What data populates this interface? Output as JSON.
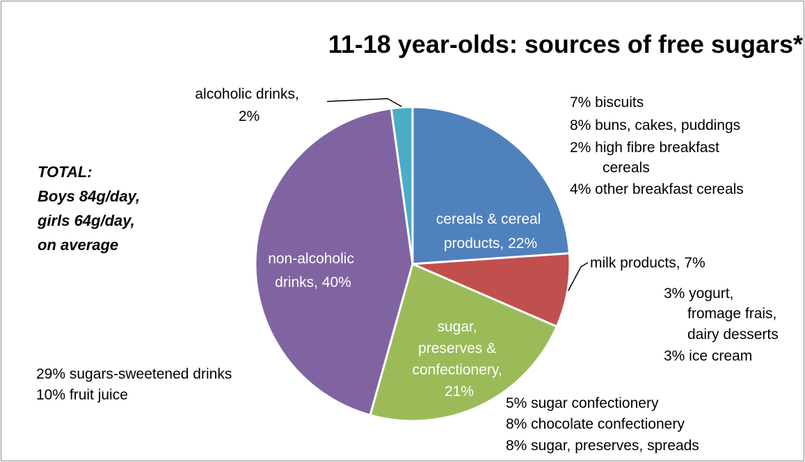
{
  "chart_data": {
    "type": "pie",
    "title": "11-18 year-olds: sources of free sugars*",
    "slices": [
      {
        "label": "cereals & cereal products",
        "value": 22,
        "color": "#4f81bd",
        "label_lines": [
          "cereals & cereal",
          "products, 22%"
        ],
        "breakdown": [
          "7% biscuits",
          "8% buns, cakes, puddings",
          "2% high fibre breakfast",
          "cereals",
          "4% other breakfast cereals"
        ]
      },
      {
        "label": "milk products",
        "value": 7,
        "color": "#c0504d",
        "label_lines": [
          "milk products, 7%"
        ],
        "breakdown": [
          "3% yogurt,",
          "fromage frais,",
          "dairy desserts",
          "3% ice cream"
        ]
      },
      {
        "label": "sugar, preserves & confectionery",
        "value": 21,
        "color": "#9bbb59",
        "label_lines": [
          "sugar,",
          "preserves &",
          "confectionery,",
          "21%"
        ],
        "breakdown": [
          "5% sugar confectionery",
          "8% chocolate confectionery",
          "8% sugar, preserves, spreads"
        ]
      },
      {
        "label": "non-alcoholic drinks",
        "value": 40,
        "color": "#8064a2",
        "label_lines": [
          "non-alcoholic",
          "drinks, 40%"
        ],
        "breakdown": [
          "29% sugars-sweetened drinks",
          "10% fruit juice"
        ]
      },
      {
        "label": "alcoholic drinks",
        "value": 2,
        "color": "#4bacc6",
        "label_lines": [
          "alcoholic drinks,",
          "2%"
        ],
        "breakdown": []
      }
    ]
  },
  "total_note": [
    "TOTAL:",
    "Boys 84g/day,",
    "girls 64g/day,",
    "on average"
  ]
}
